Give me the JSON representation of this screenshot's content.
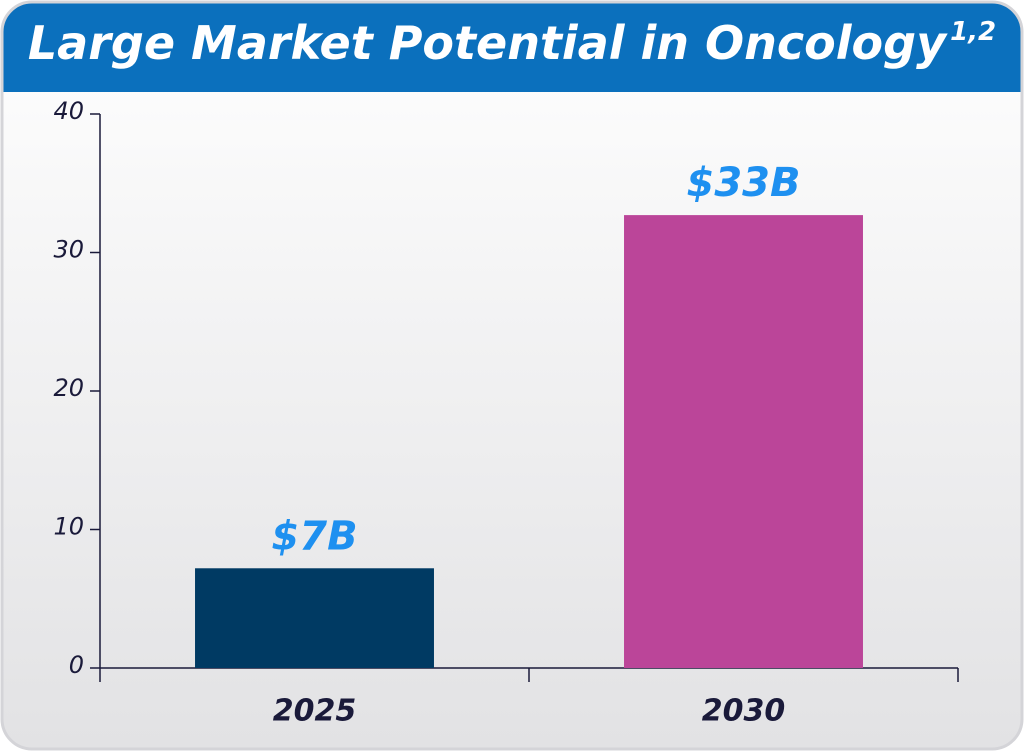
{
  "chart_data": {
    "type": "bar",
    "title": "Large Market Potential in Oncology",
    "title_note": "1,2",
    "categories": [
      "2025",
      "2030"
    ],
    "values": [
      7.2,
      32.7
    ],
    "value_labels": [
      "$7B",
      "$33B"
    ],
    "colors": [
      "#003a63",
      "#bb4599"
    ],
    "ylim": [
      0,
      40
    ],
    "yticks": [
      0,
      10,
      20,
      30,
      40
    ]
  }
}
